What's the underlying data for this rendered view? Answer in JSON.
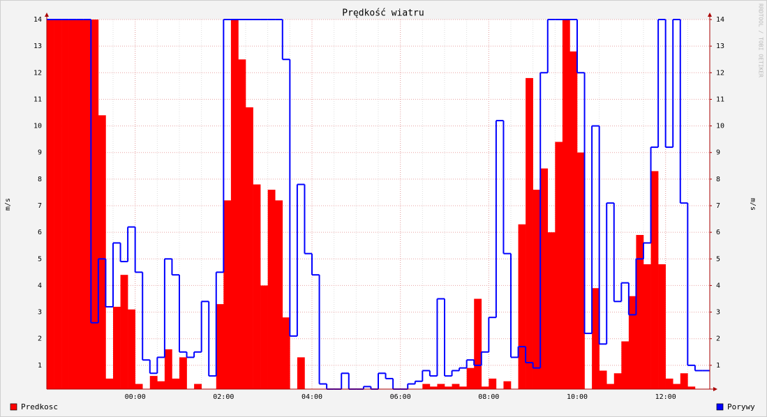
{
  "chart_data": {
    "type": "bar-step",
    "title": "Prędkość wiatru",
    "ylabel": "m/s",
    "y2label": "m/s",
    "watermark": "RRDTOOL / TOBI OETIKER",
    "categories": [
      null,
      null,
      null,
      null,
      null,
      null,
      null,
      null,
      null,
      null,
      null,
      null,
      "00:00",
      null,
      null,
      null,
      null,
      null,
      null,
      null,
      null,
      null,
      null,
      null,
      "02:00",
      null,
      null,
      null,
      null,
      null,
      null,
      null,
      null,
      null,
      null,
      null,
      "04:00",
      null,
      null,
      null,
      null,
      null,
      null,
      null,
      null,
      null,
      null,
      null,
      "06:00",
      null,
      null,
      null,
      null,
      null,
      null,
      null,
      null,
      null,
      null,
      null,
      "08:00",
      null,
      null,
      null,
      null,
      null,
      null,
      null,
      null,
      null,
      null,
      null,
      "10:00",
      null,
      null,
      null,
      null,
      null,
      null,
      null,
      null,
      null,
      null,
      null,
      "12:00",
      null,
      null,
      null,
      null,
      null
    ],
    "series": [
      {
        "name": "Predkosc",
        "color": "#ff0000",
        "style": "area",
        "values": [
          14,
          14,
          14,
          14,
          14,
          14,
          14,
          10.4,
          0.5,
          3.2,
          4.4,
          3.1,
          0.3,
          0.1,
          0.6,
          0.4,
          1.6,
          0.5,
          1.3,
          0.1,
          0.3,
          0.1,
          0.1,
          3.3,
          7.2,
          14,
          12.5,
          10.7,
          7.8,
          4.0,
          7.6,
          7.2,
          2.8,
          0.1,
          1.3,
          0,
          0.1,
          0,
          0,
          0,
          0,
          0,
          0,
          0,
          0,
          0,
          0,
          0,
          0,
          0,
          0,
          0.3,
          0.2,
          0.3,
          0.2,
          0.3,
          0.2,
          0.9,
          3.5,
          0.2,
          0.5,
          0.1,
          0.4,
          0.1,
          6.3,
          11.8,
          7.6,
          8.4,
          6.0,
          9.4,
          14,
          12.8,
          9.0,
          0,
          3.9,
          0.8,
          0.3,
          0.7,
          1.9,
          3.6,
          5.9,
          4.8,
          8.3,
          4.8,
          0.5,
          0.3,
          0.7,
          0.2,
          0,
          0
        ]
      },
      {
        "name": "Porywy",
        "color": "#0000ff",
        "style": "step",
        "values": [
          14,
          14,
          14,
          14,
          14,
          14,
          2.6,
          5.0,
          3.2,
          5.6,
          4.9,
          6.2,
          4.5,
          1.2,
          0.7,
          1.3,
          5.0,
          4.4,
          1.5,
          1.3,
          1.5,
          3.4,
          0.6,
          4.5,
          14,
          14,
          14,
          14,
          14,
          14,
          14,
          14,
          12.5,
          2.1,
          7.8,
          5.2,
          4.4,
          0.3,
          0.1,
          0,
          0.7,
          0.1,
          0.1,
          0.2,
          0.1,
          0.7,
          0.5,
          0,
          0,
          0.3,
          0.4,
          0.8,
          0.6,
          3.5,
          0.6,
          0.8,
          0.9,
          1.2,
          1.0,
          1.5,
          2.8,
          10.2,
          5.2,
          1.3,
          1.7,
          1.1,
          0.9,
          12.0,
          14,
          14,
          14,
          14,
          12.0,
          2.2,
          10.0,
          1.8,
          7.1,
          3.4,
          4.1,
          2.9,
          5.0,
          5.6,
          9.2,
          14,
          9.2,
          14,
          7.1,
          1.0,
          0.8,
          0.8
        ]
      }
    ],
    "ylim": [
      0,
      14
    ],
    "yticks": [
      1,
      2,
      3,
      4,
      5,
      6,
      7,
      8,
      9,
      10,
      11,
      12,
      13,
      14
    ],
    "y2lim": [
      0,
      14
    ],
    "y2ticks": [
      1,
      2,
      3,
      4,
      5,
      6,
      7,
      8,
      9,
      10,
      11,
      12,
      13,
      14
    ],
    "grid": true
  }
}
